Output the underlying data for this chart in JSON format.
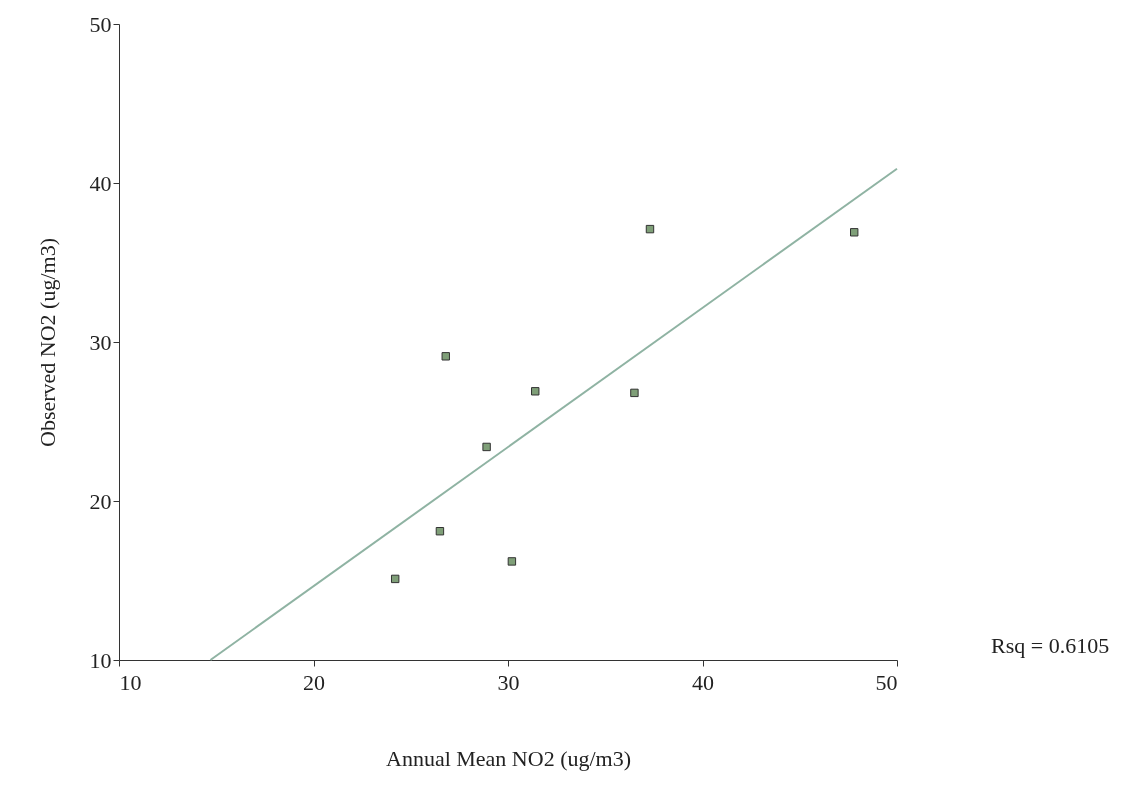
{
  "chart_data": {
    "type": "scatter",
    "xlabel": "Annual Mean NO2 (ug/m3)",
    "ylabel": "Observed NO2 (ug/m3)",
    "xlim": [
      10,
      50
    ],
    "ylim": [
      10,
      50
    ],
    "xticks": [
      10,
      20,
      30,
      40,
      50
    ],
    "yticks": [
      10,
      20,
      30,
      40,
      50
    ],
    "grid": false,
    "annotations": [
      "Rsq = 0.6105"
    ],
    "series": [
      {
        "marker": "square",
        "color": "#7f9f78",
        "x": [
          24.2,
          26.5,
          26.8,
          28.9,
          30.2,
          31.4,
          36.5,
          37.3,
          47.8
        ],
        "values": [
          15.1,
          18.1,
          29.1,
          23.4,
          16.2,
          26.9,
          26.8,
          37.1,
          36.9
        ]
      },
      {
        "type": "line",
        "marker": "none",
        "color": "#8fb3a3",
        "line_style": "solid",
        "x": [
          14.7,
          50
        ],
        "values": [
          10,
          40.9
        ]
      }
    ]
  }
}
